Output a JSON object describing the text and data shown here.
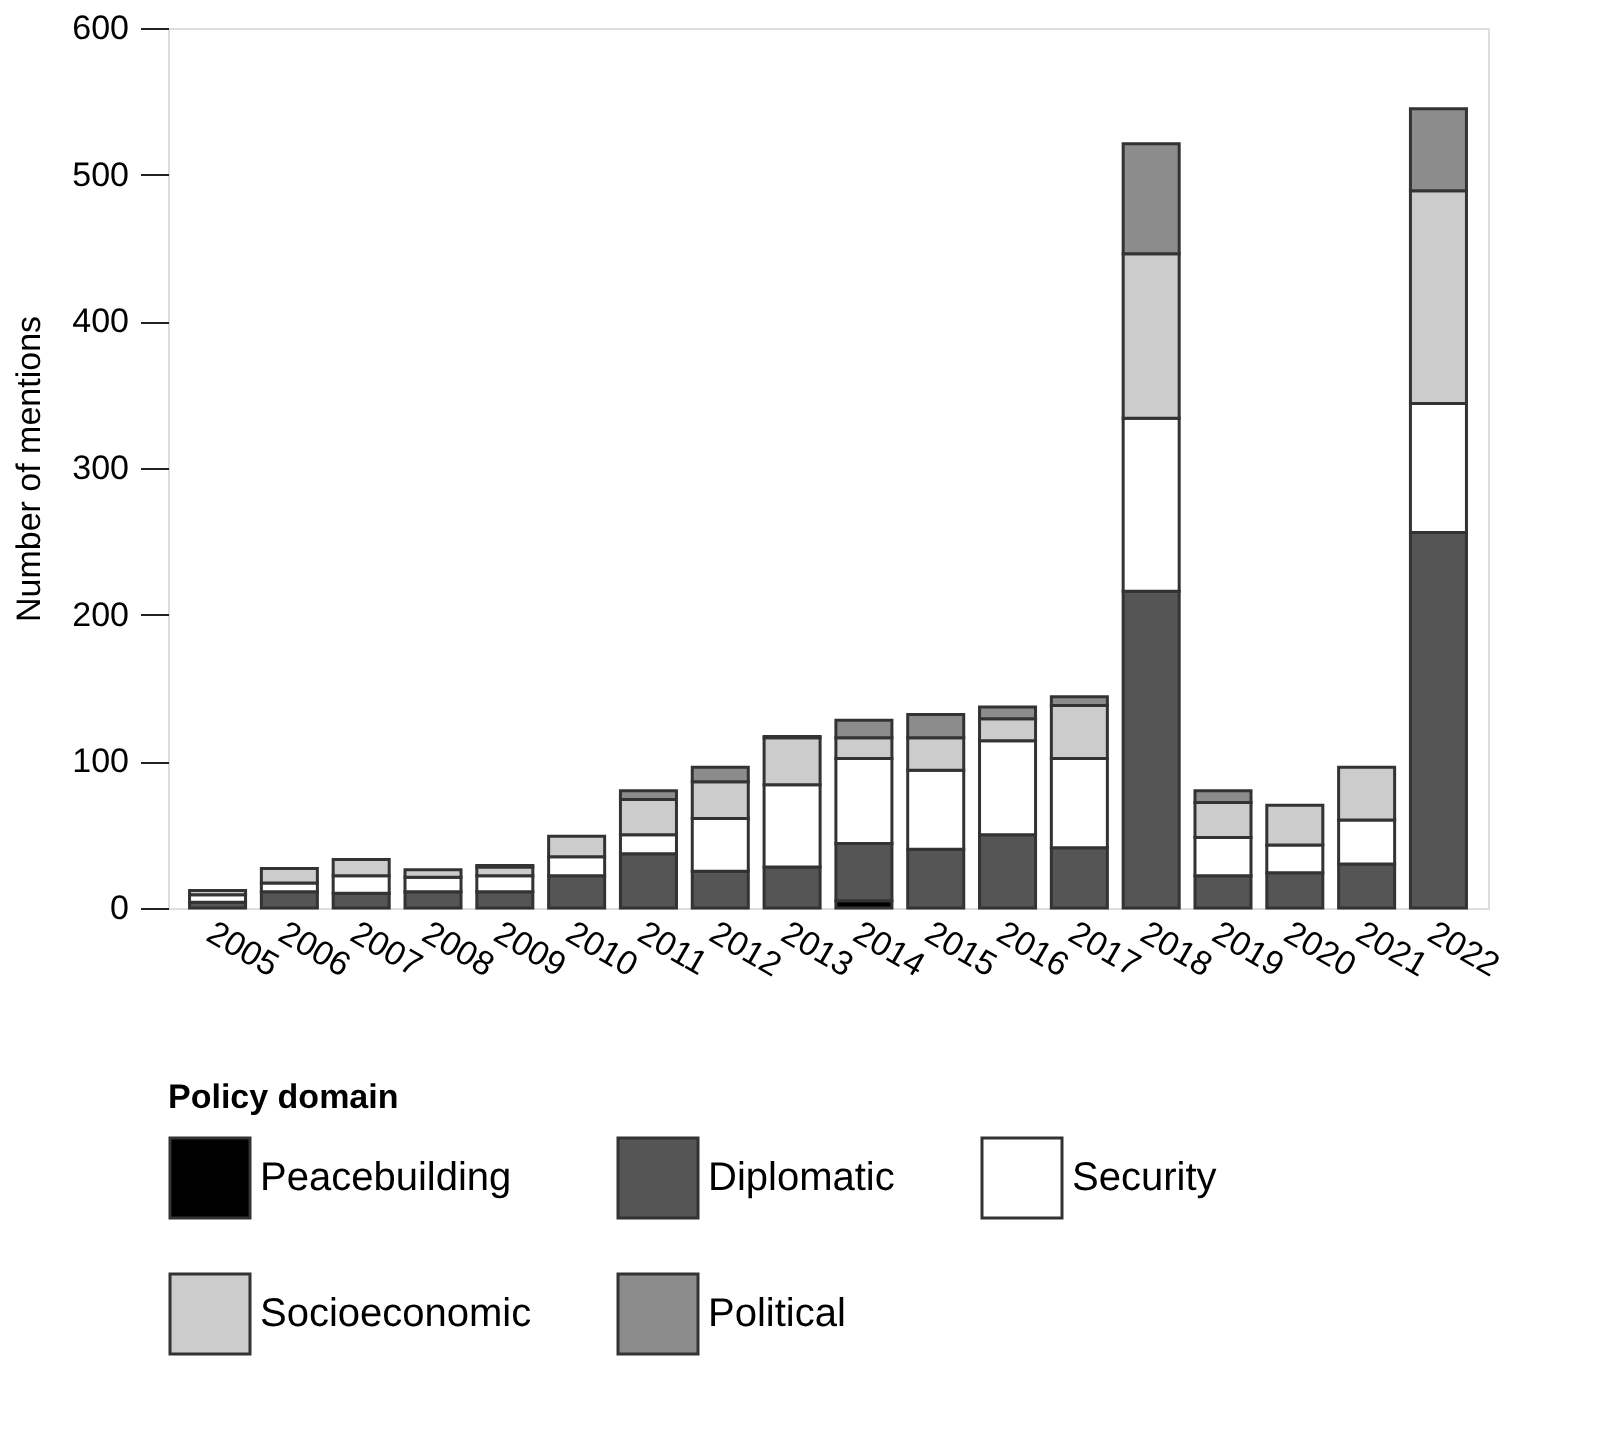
{
  "chart_data": {
    "type": "bar",
    "stacked": true,
    "ylabel": "Number of mentions",
    "legend_title": "Policy domain",
    "categories": [
      "2005",
      "2006",
      "2007",
      "2008",
      "2009",
      "2010",
      "2011",
      "2012",
      "2013",
      "2014",
      "2015",
      "2016",
      "2017",
      "2018",
      "2019",
      "2020",
      "2021",
      "2022"
    ],
    "series": [
      {
        "name": "Peacebuilding",
        "color": "#000000",
        "values": [
          0,
          0,
          0,
          0,
          0,
          0,
          0,
          0,
          0,
          5,
          0,
          0,
          0,
          0,
          0,
          0,
          0,
          0
        ]
      },
      {
        "name": "Diplomatic",
        "color": "#555555",
        "values": [
          4,
          11,
          10,
          11,
          11,
          22,
          37,
          25,
          28,
          39,
          40,
          50,
          41,
          216,
          22,
          24,
          30,
          256
        ]
      },
      {
        "name": "Security",
        "color": "#ffffff",
        "values": [
          5,
          6,
          12,
          10,
          11,
          13,
          13,
          36,
          56,
          58,
          54,
          64,
          61,
          118,
          26,
          19,
          30,
          88
        ]
      },
      {
        "name": "Socioeconomic",
        "color": "#cccccc",
        "values": [
          3,
          10,
          11,
          5,
          6,
          14,
          24,
          25,
          32,
          14,
          22,
          15,
          36,
          112,
          24,
          27,
          36,
          145
        ]
      },
      {
        "name": "Political",
        "color": "#8c8c8c",
        "values": [
          0,
          0,
          0,
          0,
          1,
          0,
          6,
          10,
          1,
          12,
          16,
          8,
          6,
          75,
          8,
          0,
          0,
          56
        ]
      }
    ],
    "ylim": [
      0,
      600
    ],
    "yticks": [
      0,
      100,
      200,
      300,
      400,
      500,
      600
    ],
    "grid": false,
    "legend": "bottom"
  }
}
